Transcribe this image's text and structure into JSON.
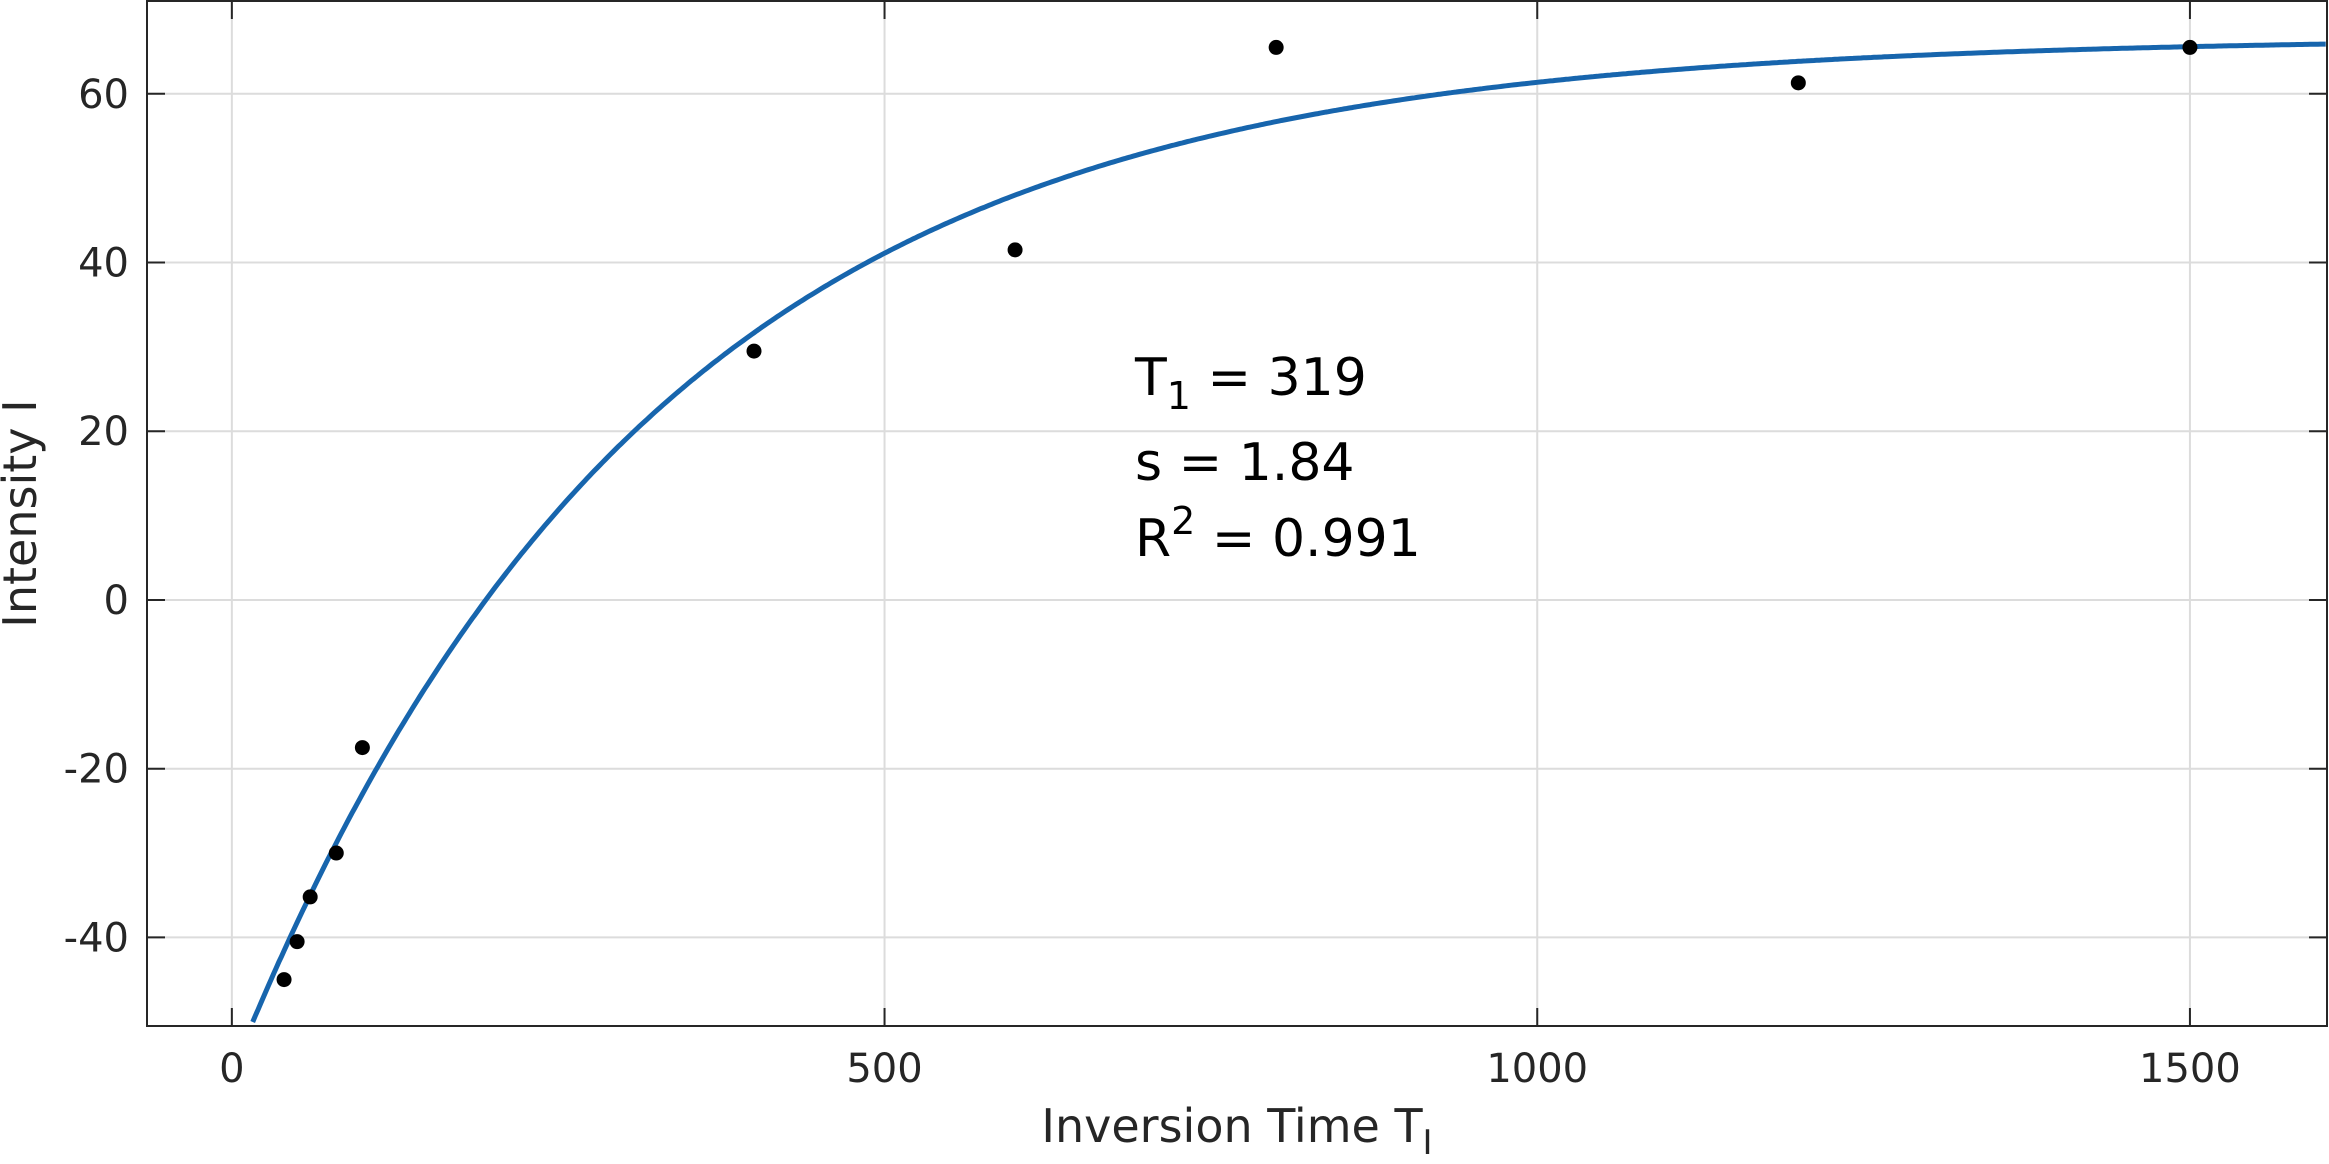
{
  "chart_data": {
    "type": "scatter",
    "xlabel": "Inversion Time T",
    "xlabel_sub": "I",
    "ylabel": "Intensity I",
    "xlim": [
      -65,
      1605
    ],
    "ylim": [
      -50.5,
      71
    ],
    "xticks": [
      0,
      500,
      1000,
      1500
    ],
    "yticks": [
      -40,
      -20,
      0,
      20,
      40,
      60
    ],
    "ytick_labels": [
      "-40",
      "-20",
      "0",
      "20",
      "40",
      "60"
    ],
    "grid": true,
    "series": [
      {
        "kind": "points",
        "x": [
          40,
          50,
          60,
          80,
          100,
          400,
          600,
          800,
          1200,
          1500
        ],
        "y": [
          -45,
          -40.5,
          -35.2,
          -30,
          -17.5,
          29.5,
          41.5,
          65.5,
          61.3,
          65.5
        ],
        "color": "#000000"
      },
      {
        "kind": "fit-curve",
        "color": "#1765ad",
        "params": {
          "M": 66.7,
          "s": 1.84,
          "T1": 319
        }
      }
    ],
    "annotation": {
      "t1_label": "T",
      "t1_sub": "1",
      "t1_value": " = 319",
      "s_line": "s = 1.84",
      "r2_label": "R",
      "r2_sup": "2",
      "r2_value": " = 0.991"
    }
  }
}
